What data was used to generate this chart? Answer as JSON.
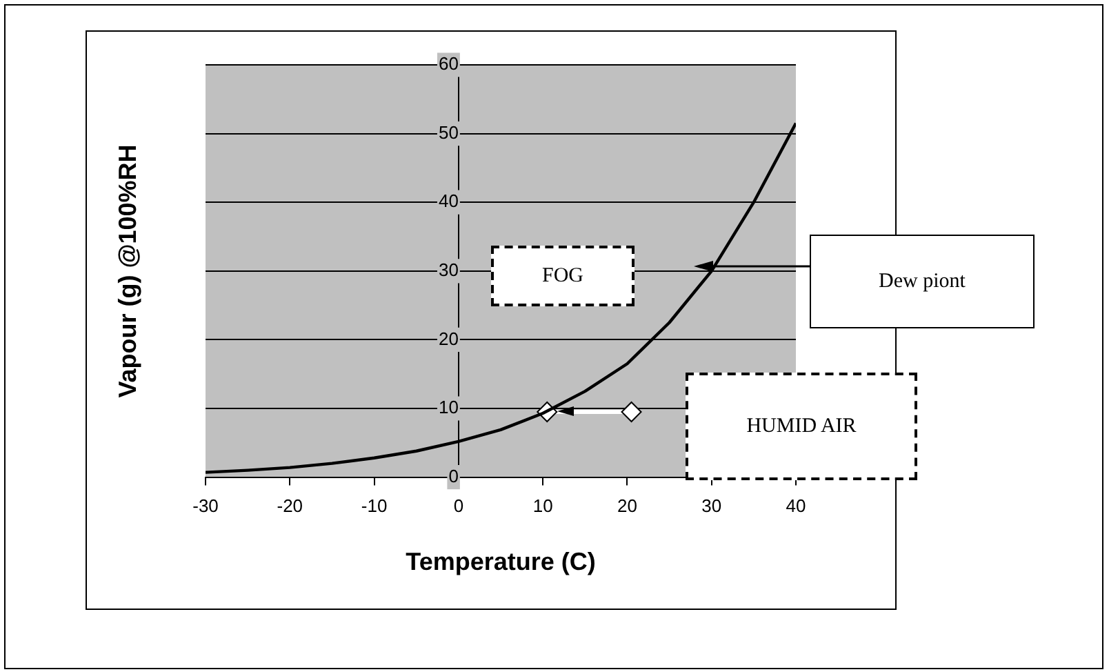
{
  "chart_data": {
    "type": "line",
    "xlabel": "Temperature (C)",
    "ylabel": "Vapour (g) @100%RH",
    "xlim": [
      -30,
      40
    ],
    "ylim": [
      0,
      60
    ],
    "xticks": [
      -30,
      -20,
      -10,
      0,
      10,
      20,
      30,
      40
    ],
    "yticks": [
      0,
      10,
      20,
      30,
      40,
      50,
      60
    ],
    "grid": "y",
    "legend": false,
    "series": [
      {
        "type": "line",
        "color": "#000000",
        "marker": "none",
        "x": [
          -30,
          -25,
          -20,
          -15,
          -10,
          -5,
          0,
          5,
          10,
          15,
          20,
          25,
          30,
          35,
          40
        ],
        "values": [
          0.7,
          1,
          1.4,
          2,
          2.8,
          3.8,
          5.2,
          6.9,
          9.3,
          12.5,
          16.5,
          22.5,
          30,
          40,
          51.5
        ]
      },
      {
        "type": "line",
        "color": "#ffffff",
        "marker": "diamond",
        "x": [
          20.5,
          10.5
        ],
        "values": [
          9.5,
          9.5
        ]
      }
    ],
    "annotations": [
      "FOG",
      "Dew piont",
      "HUMID AIR"
    ]
  }
}
